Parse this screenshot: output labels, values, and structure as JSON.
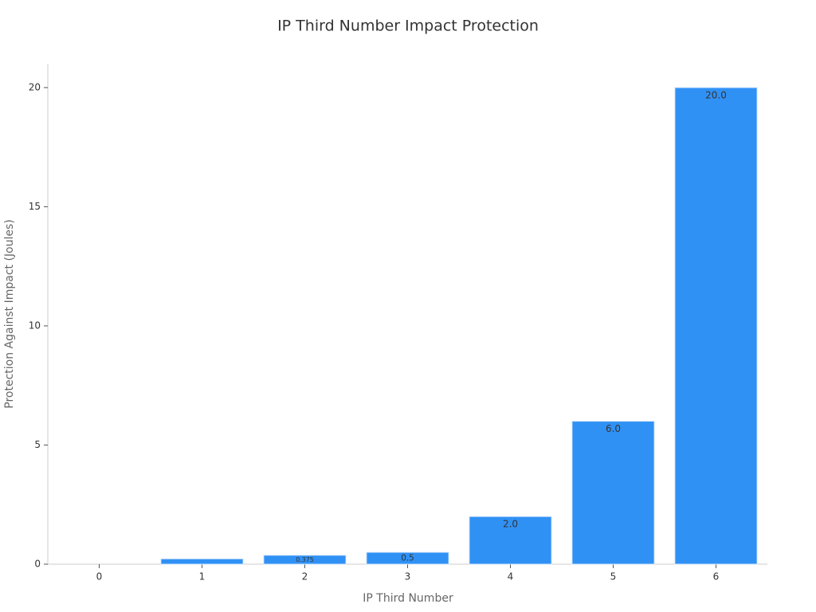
{
  "chart_data": {
    "type": "bar",
    "title": "IP Third Number Impact Protection",
    "x_label": "IP Third Number",
    "y_label": "Protection Against Impact (Joules)",
    "categories": [
      "0",
      "1",
      "2",
      "3",
      "4",
      "5",
      "6"
    ],
    "values": [
      0,
      0.225,
      0.375,
      0.5,
      2.0,
      6.0,
      20.0
    ],
    "value_labels": [
      null,
      null,
      "0.375",
      "0.5",
      "2.0",
      "6.0",
      "20.0"
    ],
    "color": "#3091f5",
    "ylim": [
      0,
      21
    ],
    "yticks": [
      0,
      5,
      10,
      15,
      20
    ],
    "grid": false
  }
}
